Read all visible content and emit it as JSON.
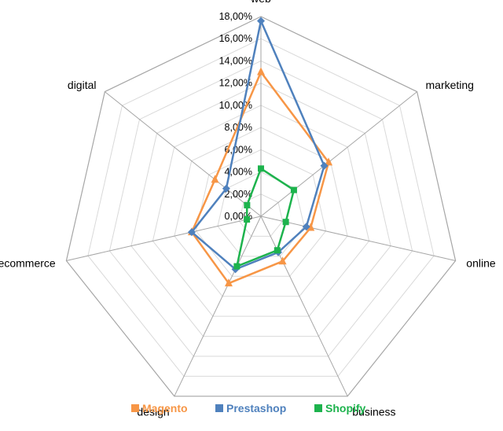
{
  "chart_data": {
    "type": "radar",
    "categories": [
      "web",
      "marketing",
      "online",
      "business",
      "design",
      "ecommerce",
      "digital"
    ],
    "tick_labels": [
      "0,00%",
      "2,00%",
      "4,00%",
      "6,00%",
      "8,00%",
      "10,00%",
      "12,00%",
      "14,00%",
      "16,00%",
      "18,00%"
    ],
    "ylim": [
      0,
      18
    ],
    "grid": true,
    "legend_position": "bottom",
    "series": [
      {
        "name": "Magento",
        "color": "#F79646",
        "marker": "triangle",
        "values": [
          13.0,
          7.8,
          4.6,
          4.5,
          6.7,
          6.4,
          5.3
        ]
      },
      {
        "name": "Prestashop",
        "color": "#4F81BD",
        "marker": "diamond",
        "values": [
          17.6,
          7.3,
          4.2,
          3.6,
          5.3,
          6.4,
          4.0
        ]
      },
      {
        "name": "Shopify",
        "color": "#1DB34D",
        "marker": "square",
        "values": [
          4.3,
          3.8,
          2.3,
          3.4,
          5.0,
          1.3,
          1.6
        ]
      }
    ]
  }
}
